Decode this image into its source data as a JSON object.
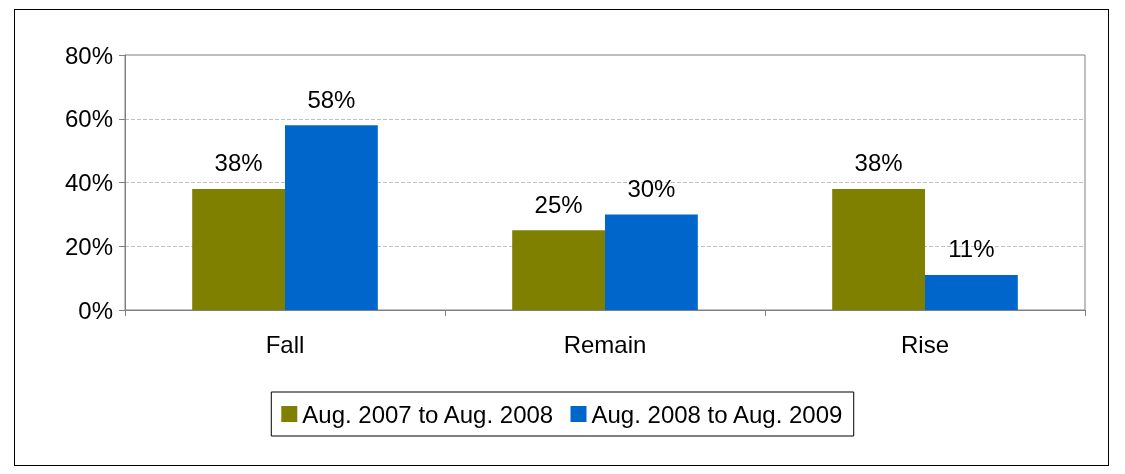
{
  "chart_data": {
    "type": "bar",
    "categories": [
      "Fall",
      "Remain",
      "Rise"
    ],
    "series": [
      {
        "name": "Aug. 2007 to Aug. 2008",
        "color": "#808000",
        "values": [
          38,
          25,
          38
        ],
        "value_labels": [
          "38%",
          "25%",
          "38%"
        ]
      },
      {
        "name": "Aug. 2008 to Aug. 2009",
        "color": "#0066cc",
        "values": [
          58,
          30,
          11
        ],
        "value_labels": [
          "58%",
          "30%",
          "11%"
        ]
      }
    ],
    "ylim": [
      0,
      80
    ],
    "yticks": [
      {
        "value": 0,
        "label": "0%"
      },
      {
        "value": 20,
        "label": "20%"
      },
      {
        "value": 40,
        "label": "40%"
      },
      {
        "value": 60,
        "label": "60%"
      },
      {
        "value": 80,
        "label": "80%"
      }
    ],
    "grid": "y",
    "legend": "bottom"
  }
}
